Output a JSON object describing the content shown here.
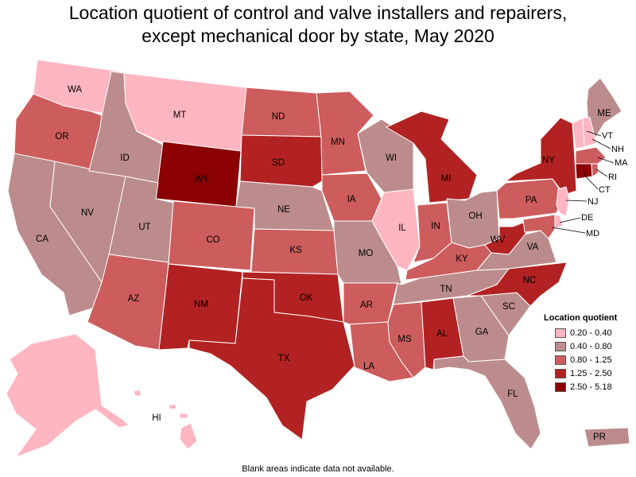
{
  "title_line1": "Location quotient of control and valve installers and repairers,",
  "title_line2": "except mechanical door by state, May 2020",
  "footnote": "Blank areas indicate data not available.",
  "legend": {
    "title": "Location quotient",
    "items": [
      {
        "label": "0.20 - 0.40",
        "color": "#ffb6c1"
      },
      {
        "label": "0.40 - 0.80",
        "color": "#bc8c8c"
      },
      {
        "label": "0.80 - 1.25",
        "color": "#cd5c5c"
      },
      {
        "label": "1.25 - 2.50",
        "color": "#b22222"
      },
      {
        "label": "2.50 - 5.18",
        "color": "#8b0000"
      }
    ]
  },
  "states": {
    "WA": 0,
    "OR": 2,
    "CA": 1,
    "NV": 1,
    "ID": 1,
    "MT": 0,
    "WY": 4,
    "UT": 1,
    "AZ": 2,
    "CO": 2,
    "NM": 3,
    "ND": 2,
    "SD": 3,
    "NE": 1,
    "KS": 2,
    "OK": 3,
    "TX": 3,
    "MN": 2,
    "IA": 2,
    "MO": 1,
    "AR": 2,
    "LA": 2,
    "WI": 1,
    "IL": 0,
    "MI": 3,
    "IN": 2,
    "OH": 1,
    "KY": 2,
    "TN": 1,
    "MS": 2,
    "AL": 3,
    "GA": 1,
    "FL": 1,
    "SC": 1,
    "NC": 3,
    "VA": 1,
    "WV": 3,
    "PA": 2,
    "NY": 3,
    "ME": 1,
    "VT": 0,
    "NH": 0,
    "MA": 2,
    "RI": 2,
    "CT": 4,
    "NJ": 0,
    "DE": 0,
    "MD": 2,
    "AK": 0,
    "HI": 0,
    "PR": 1
  }
}
